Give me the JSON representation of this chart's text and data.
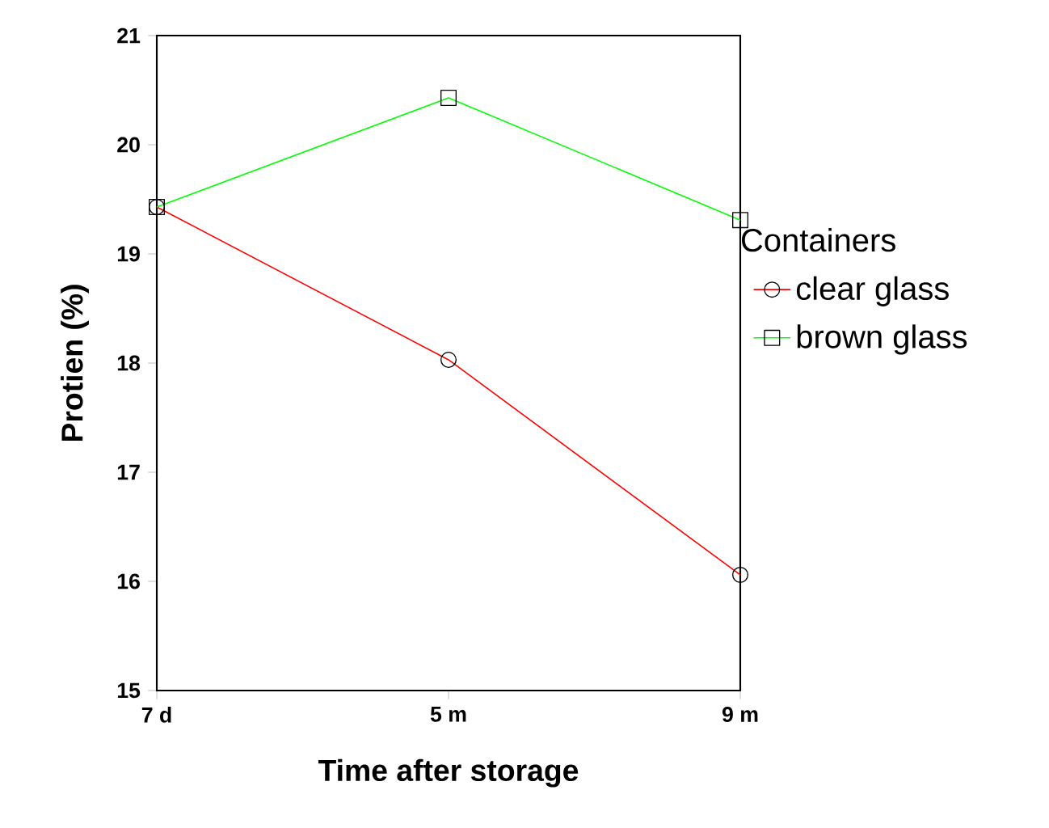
{
  "chart_data": {
    "type": "line",
    "xlabel": "Time after storage",
    "ylabel": "Protien (%)",
    "legend_title": "Containers",
    "categories": [
      "7 d",
      "5 m",
      "9 m"
    ],
    "series": [
      {
        "name": "clear glass",
        "color": "#ff0000",
        "marker": "circle",
        "values": [
          19.43,
          18.03,
          16.06
        ]
      },
      {
        "name": "brown glass",
        "color": "#00ff00",
        "marker": "square",
        "values": [
          19.43,
          20.43,
          19.31
        ]
      }
    ],
    "ylim": [
      15,
      21
    ],
    "yticks": [
      15,
      16,
      17,
      18,
      19,
      20,
      21
    ],
    "grid": false,
    "legend": "right"
  }
}
